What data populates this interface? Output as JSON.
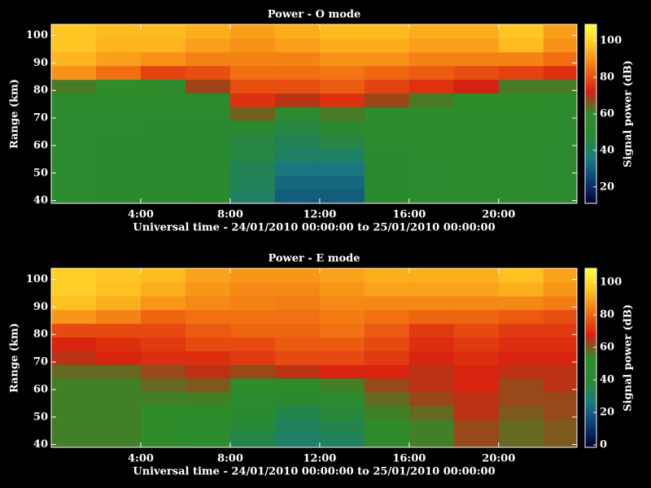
{
  "chart_data": [
    {
      "type": "heatmap",
      "title": "Power - O mode",
      "x_label": "Universal time - 24/01/2010 00:00:00 to 25/01/2010 00:00:00",
      "y_label": "Range (km)",
      "colorbar_label": "Signal power (dB)",
      "x": [
        0,
        2,
        4,
        6,
        8,
        10,
        12,
        14,
        16,
        18,
        20,
        22
      ],
      "y": [
        39,
        44,
        49,
        54,
        59,
        64,
        69,
        74,
        79,
        84,
        89,
        94,
        99
      ],
      "z": [
        [
          52,
          52,
          52,
          52,
          52,
          52,
          52,
          55,
          62,
          90,
          95,
          98,
          98
        ],
        [
          50,
          50,
          50,
          50,
          50,
          52,
          52,
          55,
          60,
          85,
          92,
          95,
          96
        ],
        [
          50,
          50,
          50,
          50,
          50,
          50,
          52,
          55,
          60,
          78,
          90,
          95,
          96
        ],
        [
          48,
          48,
          48,
          48,
          48,
          50,
          52,
          55,
          68,
          80,
          88,
          92,
          94
        ],
        [
          40,
          42,
          42,
          45,
          45,
          48,
          65,
          75,
          80,
          85,
          88,
          90,
          92
        ],
        [
          30,
          32,
          35,
          40,
          42,
          45,
          55,
          70,
          80,
          85,
          88,
          92,
          94
        ],
        [
          30,
          32,
          35,
          40,
          45,
          50,
          62,
          75,
          82,
          86,
          90,
          94,
          96
        ],
        [
          48,
          48,
          48,
          50,
          52,
          55,
          58,
          68,
          78,
          84,
          90,
          94,
          96
        ],
        [
          52,
          52,
          52,
          52,
          55,
          55,
          58,
          62,
          75,
          82,
          88,
          92,
          94
        ],
        [
          55,
          55,
          55,
          55,
          55,
          55,
          58,
          60,
          72,
          80,
          88,
          92,
          94
        ],
        [
          55,
          55,
          55,
          55,
          55,
          58,
          58,
          60,
          62,
          78,
          88,
          96,
          98
        ],
        [
          52,
          52,
          52,
          52,
          52,
          55,
          55,
          58,
          62,
          75,
          85,
          90,
          92
        ]
      ],
      "xlim": [
        0,
        23.5
      ],
      "ylim": [
        39,
        104
      ],
      "xticks": [
        {
          "value": 4,
          "label": "4:00"
        },
        {
          "value": 8,
          "label": "8:00"
        },
        {
          "value": 12,
          "label": "12:00"
        },
        {
          "value": 16,
          "label": "16:00"
        },
        {
          "value": 20,
          "label": "20:00"
        }
      ],
      "yticks": [
        40,
        50,
        60,
        70,
        80,
        90,
        100
      ],
      "clim": [
        11,
        109
      ],
      "cticks": [
        20,
        40,
        60,
        80,
        100
      ],
      "colormap": [
        "#000030",
        "#0a3a78",
        "#1a7a80",
        "#2a8a30",
        "#2e8c2a",
        "#d82010",
        "#f06a10",
        "#ffc020",
        "#ffff40"
      ]
    },
    {
      "type": "heatmap",
      "title": "Power - E mode",
      "x_label": "Universal time - 24/01/2010 00:00:00 to 25/01/2010 00:00:00",
      "y_label": "Range (km)",
      "colorbar_label": "Signal power (dB)",
      "x": [
        0,
        2,
        4,
        6,
        8,
        10,
        12,
        14,
        16,
        18,
        20,
        22
      ],
      "y": [
        39,
        44,
        49,
        54,
        59,
        64,
        69,
        74,
        79,
        84,
        89,
        94,
        99
      ],
      "z": [
        [
          55,
          55,
          55,
          55,
          55,
          58,
          65,
          68,
          75,
          88,
          95,
          98,
          98
        ],
        [
          55,
          55,
          55,
          55,
          55,
          58,
          68,
          70,
          75,
          85,
          92,
          95,
          96
        ],
        [
          52,
          52,
          52,
          55,
          58,
          62,
          70,
          72,
          75,
          80,
          88,
          92,
          94
        ],
        [
          45,
          48,
          50,
          55,
          60,
          65,
          70,
          75,
          78,
          82,
          86,
          88,
          90
        ],
        [
          35,
          38,
          40,
          45,
          52,
          62,
          72,
          75,
          80,
          82,
          85,
          86,
          88
        ],
        [
          30,
          32,
          35,
          42,
          52,
          65,
          75,
          78,
          80,
          82,
          84,
          86,
          88
        ],
        [
          32,
          35,
          38,
          45,
          55,
          68,
          75,
          78,
          82,
          84,
          86,
          88,
          90
        ],
        [
          50,
          52,
          55,
          58,
          62,
          68,
          72,
          75,
          78,
          82,
          86,
          90,
          92
        ],
        [
          55,
          55,
          58,
          62,
          65,
          65,
          68,
          70,
          72,
          80,
          86,
          90,
          92
        ],
        [
          62,
          62,
          65,
          65,
          68,
          68,
          70,
          72,
          75,
          80,
          86,
          90,
          92
        ],
        [
          58,
          58,
          60,
          62,
          62,
          65,
          68,
          70,
          72,
          78,
          86,
          92,
          95
        ],
        [
          60,
          60,
          62,
          62,
          65,
          65,
          68,
          70,
          72,
          76,
          84,
          88,
          90
        ]
      ],
      "xlim": [
        0,
        23.5
      ],
      "ylim": [
        39,
        104
      ],
      "xticks": [
        {
          "value": 4,
          "label": "4:00"
        },
        {
          "value": 8,
          "label": "8:00"
        },
        {
          "value": 12,
          "label": "12:00"
        },
        {
          "value": 16,
          "label": "16:00"
        },
        {
          "value": 20,
          "label": "20:00"
        }
      ],
      "yticks": [
        40,
        50,
        60,
        70,
        80,
        90,
        100
      ],
      "clim": [
        -1.5,
        108.5
      ],
      "cticks": [
        0,
        20,
        40,
        60,
        80,
        100
      ],
      "colormap": [
        "#000030",
        "#0a3a78",
        "#1a7a80",
        "#2a8a30",
        "#2e8c2a",
        "#d82010",
        "#f06a10",
        "#ffc020",
        "#ffff40"
      ]
    }
  ]
}
